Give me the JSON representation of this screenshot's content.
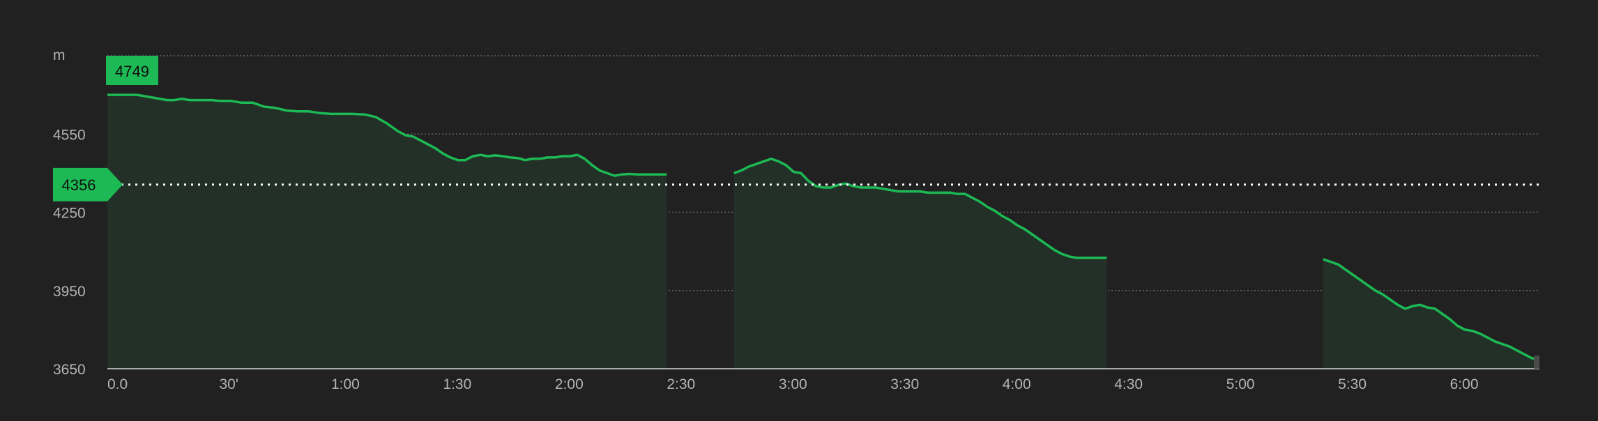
{
  "chart_data": {
    "type": "area",
    "ylabel": "m",
    "xlabel": "",
    "y_ticks": [
      4550,
      4250,
      3950,
      3650
    ],
    "y_tick_labels": [
      "4550",
      "4250",
      "3950",
      "3650"
    ],
    "ylim": [
      3650,
      4850
    ],
    "x_ticks": [
      0,
      30,
      60,
      90,
      120,
      150,
      180,
      210,
      240,
      270,
      300,
      330,
      360
    ],
    "x_tick_labels": [
      "0.0",
      "30'",
      "1:00",
      "1:30",
      "2:00",
      "2:30",
      "3:00",
      "3:30",
      "4:00",
      "4:30",
      "5:00",
      "5:30",
      "6:00"
    ],
    "xlim": [
      0,
      384
    ],
    "grid": true,
    "max_label": "4749",
    "current_value": 4356,
    "current_label": "4356",
    "colors": {
      "line": "#1db954",
      "badge": "#1db954",
      "fill": "#223027",
      "grid": "#666666"
    },
    "segments": [
      {
        "x": [
          0,
          4,
          8,
          10,
          12,
          14,
          16,
          18,
          20,
          22,
          24,
          26,
          28,
          30,
          33,
          36,
          39,
          42,
          45,
          48,
          51,
          54,
          57,
          60,
          63,
          66,
          69,
          72,
          75,
          78,
          80,
          82,
          84,
          86,
          88,
          90,
          92,
          94,
          96,
          98,
          100,
          102,
          104,
          106,
          108,
          110,
          112,
          114,
          116,
          118,
          120,
          122,
          124,
          126,
          128,
          130,
          132,
          134,
          136,
          138,
          140,
          142,
          144,
          146,
          148,
          150
        ],
        "y": [
          4700,
          4700,
          4700,
          4695,
          4690,
          4685,
          4680,
          4680,
          4685,
          4680,
          4680,
          4680,
          4680,
          4677,
          4677,
          4670,
          4670,
          4655,
          4650,
          4640,
          4637,
          4637,
          4630,
          4627,
          4627,
          4627,
          4625,
          4615,
          4590,
          4560,
          4545,
          4540,
          4525,
          4510,
          4495,
          4475,
          4460,
          4450,
          4450,
          4465,
          4470,
          4465,
          4468,
          4465,
          4460,
          4458,
          4450,
          4455,
          4455,
          4460,
          4460,
          4465,
          4465,
          4470,
          4455,
          4430,
          4410,
          4400,
          4390,
          4395,
          4397,
          4395,
          4395,
          4395,
          4395,
          4395
        ]
      },
      {
        "x": [
          168,
          170,
          172,
          174,
          176,
          178,
          180,
          182,
          184,
          186,
          188,
          190,
          192,
          194,
          196,
          198,
          200,
          202,
          204,
          206,
          208,
          210,
          212,
          214,
          216,
          218,
          220,
          222,
          224,
          226,
          228,
          230,
          232,
          234,
          236,
          238,
          240,
          242,
          244,
          246,
          248,
          250,
          252,
          254,
          256,
          258,
          260,
          262,
          264,
          266,
          268
        ],
        "y": [
          4400,
          4410,
          4425,
          4435,
          4445,
          4455,
          4445,
          4430,
          4405,
          4400,
          4370,
          4350,
          4345,
          4345,
          4355,
          4360,
          4350,
          4345,
          4345,
          4345,
          4340,
          4335,
          4330,
          4330,
          4330,
          4330,
          4325,
          4325,
          4325,
          4325,
          4320,
          4320,
          4305,
          4290,
          4270,
          4255,
          4235,
          4220,
          4200,
          4185,
          4165,
          4145,
          4125,
          4105,
          4090,
          4080,
          4075,
          4075,
          4075,
          4075,
          4075
        ]
      },
      {
        "x": [
          326,
          328,
          330,
          332,
          334,
          336,
          338,
          340,
          342,
          344,
          346,
          348,
          350,
          352,
          354,
          356,
          358,
          360,
          362,
          364,
          366,
          368,
          370,
          372,
          374,
          376,
          378,
          380,
          382,
          384
        ],
        "y": [
          4070,
          4060,
          4050,
          4030,
          4010,
          3990,
          3970,
          3950,
          3935,
          3915,
          3895,
          3880,
          3890,
          3895,
          3885,
          3880,
          3860,
          3840,
          3815,
          3800,
          3795,
          3785,
          3770,
          3755,
          3745,
          3735,
          3720,
          3705,
          3690,
          3688
        ]
      }
    ]
  }
}
